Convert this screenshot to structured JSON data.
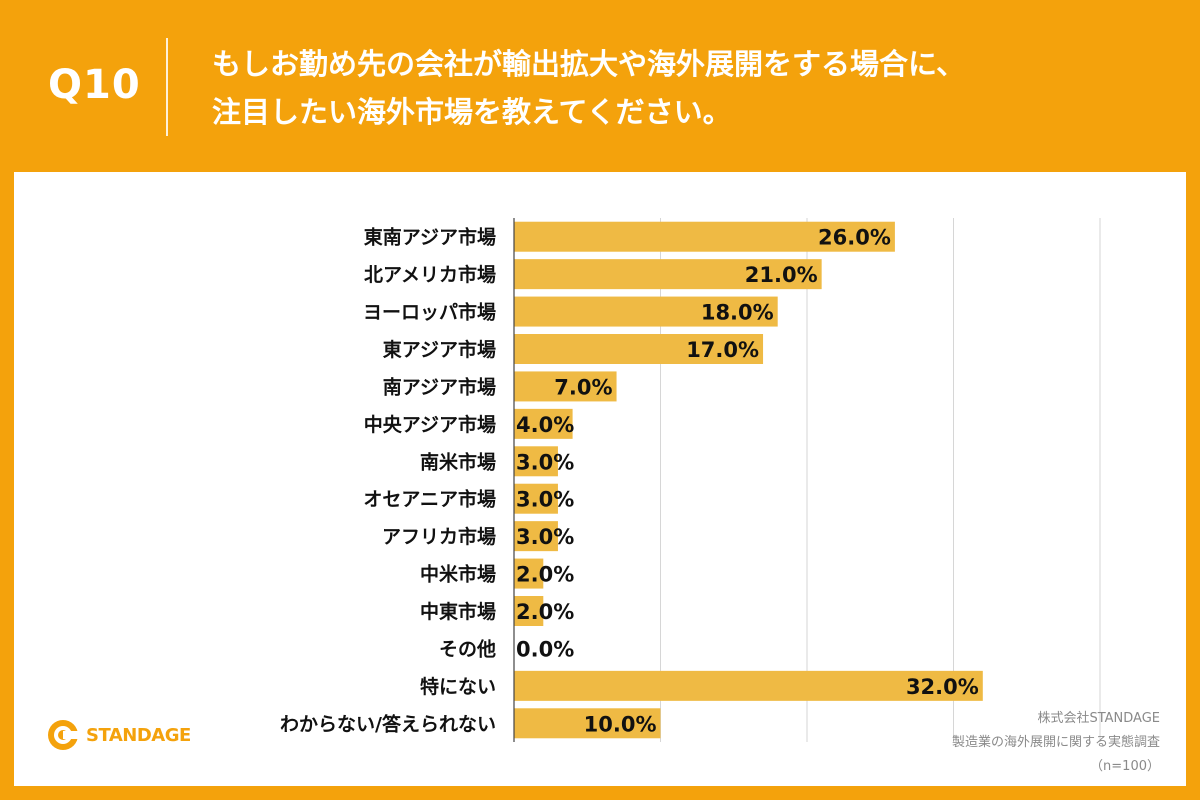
{
  "header": {
    "question_number": "Q10",
    "question_line1": "もしお勤め先の会社が輸出拡大や海外展開をする場合に、",
    "question_line2": "注目したい海外市場を教えてください。"
  },
  "colors": {
    "background": "#F4A20C",
    "bar": "#EFBA44",
    "grid": "#d6d6d6",
    "text": "#111111"
  },
  "logo": {
    "text": "STANDAGE",
    "icon": "standage-logo-icon"
  },
  "source": {
    "company": "株式会社STANDAGE",
    "survey": "製造業の海外展開に関する実態調査",
    "sample": "（n=100）"
  },
  "chart_data": {
    "type": "bar",
    "orientation": "horizontal",
    "title": "",
    "xlabel": "",
    "ylabel": "",
    "xlim": [
      0,
      40
    ],
    "grid": true,
    "value_suffix": "%",
    "categories": [
      "東南アジア市場",
      "北アメリカ市場",
      "ヨーロッパ市場",
      "東アジア市場",
      "南アジア市場",
      "中央アジア市場",
      "南米市場",
      "オセアニア市場",
      "アフリカ市場",
      "中米市場",
      "中東市場",
      "その他",
      "特にない",
      "わからない/答えられない"
    ],
    "values": [
      26.0,
      21.0,
      18.0,
      17.0,
      7.0,
      4.0,
      3.0,
      3.0,
      3.0,
      2.0,
      2.0,
      0.0,
      32.0,
      10.0
    ],
    "labels": [
      "26.0%",
      "21.0%",
      "18.0%",
      "17.0%",
      "7.0%",
      "4.0%",
      "3.0%",
      "3.0%",
      "3.0%",
      "2.0%",
      "2.0%",
      "0.0%",
      "32.0%",
      "10.0%"
    ]
  }
}
